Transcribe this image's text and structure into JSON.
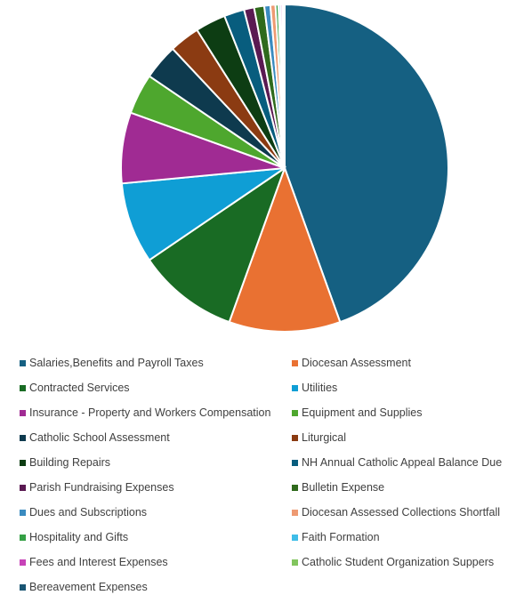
{
  "chart_data": {
    "type": "pie",
    "title": "",
    "legend_position": "bottom",
    "start_angle": "12 o'clock, clockwise",
    "slices": [
      {
        "label": "Salaries,Benefits and Payroll Taxes",
        "value": 44.5,
        "color": "#156082"
      },
      {
        "label": "Diocesan Assessment",
        "value": 11.0,
        "color": "#E97132"
      },
      {
        "label": "Contracted Services",
        "value": 10.0,
        "color": "#196B24"
      },
      {
        "label": "Utilities",
        "value": 8.0,
        "color": "#0F9ED5"
      },
      {
        "label": "Insurance - Property and Workers Compensation",
        "value": 7.0,
        "color": "#A02B93"
      },
      {
        "label": "Equipment and Supplies",
        "value": 4.0,
        "color": "#4EA72E"
      },
      {
        "label": "Catholic School Assessment",
        "value": 3.5,
        "color": "#0E3A4E"
      },
      {
        "label": "Liturgical",
        "value": 3.0,
        "color": "#8B3B12"
      },
      {
        "label": "Building Repairs",
        "value": 3.0,
        "color": "#0D3D13"
      },
      {
        "label": "NH Annual Catholic Appeal Balance Due",
        "value": 2.0,
        "color": "#085D7E"
      },
      {
        "label": "Parish Fundraising Expenses",
        "value": 1.0,
        "color": "#5A1A52"
      },
      {
        "label": "Bulletin Expense",
        "value": 1.0,
        "color": "#2F6A1C"
      },
      {
        "label": "Dues and Subscriptions",
        "value": 0.6,
        "color": "#3A8BC0"
      },
      {
        "label": "Diocesan Assessed Collections Shortfall",
        "value": 0.5,
        "color": "#EE9A72"
      },
      {
        "label": "Hospitality and Gifts",
        "value": 0.3,
        "color": "#35A045"
      },
      {
        "label": "Faith Formation",
        "value": 0.2,
        "color": "#3FBDE8"
      },
      {
        "label": "Fees and Interest Expenses",
        "value": 0.2,
        "color": "#C743B8"
      },
      {
        "label": "Catholic Student Organization Suppers",
        "value": 0.1,
        "color": "#82C55E"
      },
      {
        "label": "Bereavement Expenses",
        "value": 0.1,
        "color": "#1A5573"
      }
    ]
  }
}
